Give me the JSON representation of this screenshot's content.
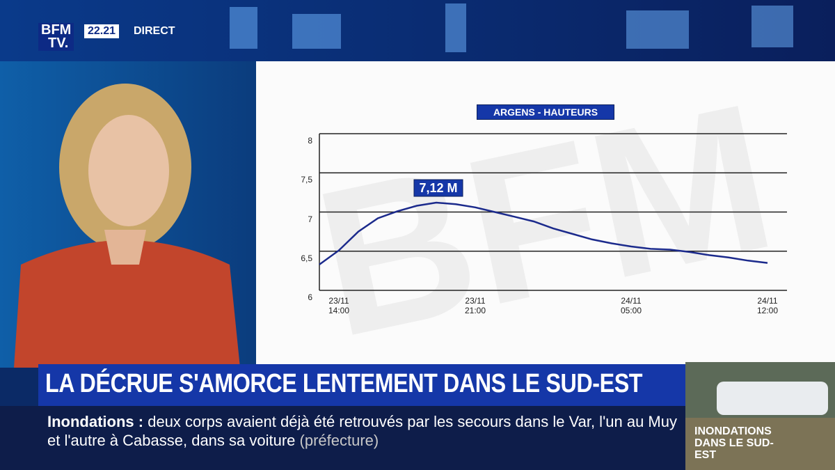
{
  "broadcast": {
    "logo_top": "BFM",
    "logo_bottom": "TV.",
    "clock": "22.21",
    "live": "DIRECT",
    "headline": "LA DÉCRUE S'AMORCE LENTEMENT DANS LE SUD-EST",
    "ticker_topic": "Inondations :",
    "ticker_text": "deux corps avaient déjà été retrouvés par les secours dans le Var, l'un au Muy et l'autre à Cabasse, dans sa voiture",
    "ticker_source": "(préfecture)",
    "side_label": "INONDATIONS DANS LE SUD-EST"
  },
  "chart_data": {
    "type": "line",
    "title": "ARGENS - HAUTEURS",
    "annotation": "7,12 M",
    "ylim": [
      6,
      8
    ],
    "yticks": [
      6,
      {
        "value": 6.5,
        "label": "6,5"
      },
      7,
      {
        "value": 7.5,
        "label": "7,5"
      },
      8
    ],
    "xlim": [
      "23/11 13:00",
      "24/11 13:00"
    ],
    "xticks": [
      "23/11 14:00",
      "23/11 21:00",
      "24/11 05:00",
      "24/11 12:00"
    ],
    "grid": true,
    "series": [
      {
        "name": "Argens",
        "color": "#1b2a8c",
        "x": [
          "23/11 13:00",
          "23/11 14:00",
          "23/11 15:00",
          "23/11 16:00",
          "23/11 17:00",
          "23/11 18:00",
          "23/11 19:00",
          "23/11 20:00",
          "23/11 21:00",
          "23/11 22:00",
          "23/11 23:00",
          "24/11 00:00",
          "24/11 01:00",
          "24/11 02:00",
          "24/11 03:00",
          "24/11 04:00",
          "24/11 05:00",
          "24/11 06:00",
          "24/11 07:00",
          "24/11 08:00",
          "24/11 09:00",
          "24/11 10:00",
          "24/11 11:00",
          "24/11 12:00"
        ],
        "values": [
          6.33,
          6.51,
          6.75,
          6.92,
          7.01,
          7.08,
          7.12,
          7.1,
          7.06,
          7.0,
          6.94,
          6.88,
          6.79,
          6.72,
          6.65,
          6.6,
          6.56,
          6.53,
          6.52,
          6.49,
          6.45,
          6.42,
          6.38,
          6.35
        ]
      }
    ]
  }
}
